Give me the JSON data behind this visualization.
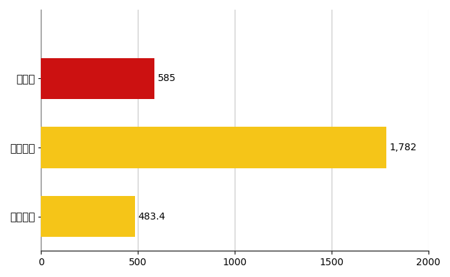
{
  "categories": [
    "全国平均",
    "全国最大",
    "広島県"
  ],
  "values": [
    483.4,
    1782,
    585
  ],
  "bar_colors": [
    "#f5c518",
    "#f5c518",
    "#cc1111"
  ],
  "value_labels": [
    "483.4",
    "1,782",
    "585"
  ],
  "xlim": [
    0,
    2000
  ],
  "xticks": [
    0,
    500,
    1000,
    1500,
    2000
  ],
  "background_color": "#ffffff",
  "grid_color": "#c8c8c8",
  "bar_height": 0.6,
  "label_fontsize": 11,
  "tick_fontsize": 10,
  "value_fontsize": 10
}
